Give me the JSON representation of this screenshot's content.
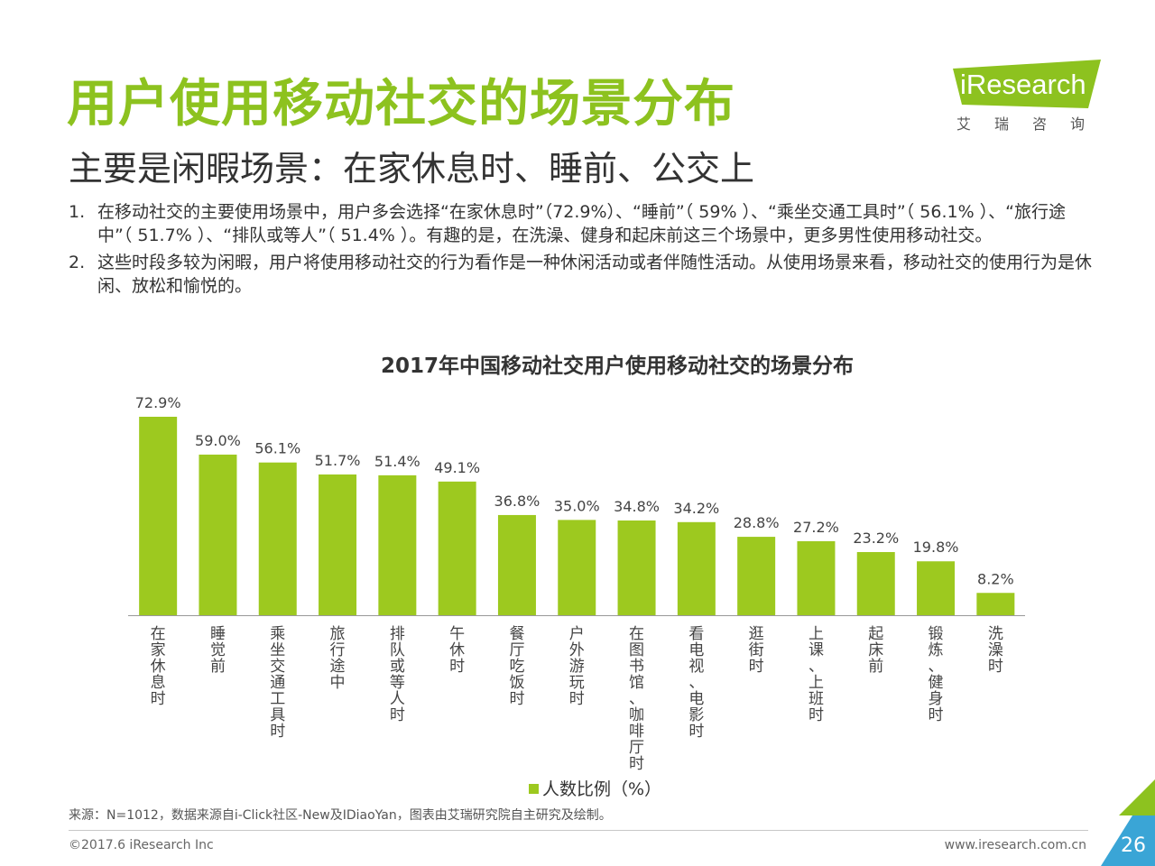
{
  "header": {
    "title": "用户使用移动社交的场景分布",
    "subtitle": "主要是闲暇场景：在家休息时、睡前、公交上"
  },
  "logo": {
    "text": "iResearch",
    "sub": "艾瑞咨询"
  },
  "bullets": [
    {
      "num": "1.",
      "text": "在移动社交的主要使用场景中，用户多会选择“在家休息时”（72.9%）、“睡前”（ 59% ）、“乘坐交通工具时”（ 56.1% ）、“旅行途中”（ 51.7% ）、“排队或等人”（ 51.4% ）。有趣的是，在洗澡、健身和起床前这三个场景中，更多男性使用移动社交。"
    },
    {
      "num": "2.",
      "text": "这些时段多较为闲暇，用户将使用移动社交的行为看作是一种休闲活动或者伴随性活动。从使用场景来看，移动社交的使用行为是休闲、放松和愉悦的。"
    }
  ],
  "chart_data": {
    "type": "bar",
    "title": "2017年中国移动社交用户使用移动社交的场景分布",
    "categories": [
      "在家休息时",
      "睡觉前",
      "乘坐交通工具时",
      "旅行途中",
      "排队或等人时",
      "午休时",
      "餐厅吃饭时",
      "户外游玩时",
      "在图书馆、咖啡厅时",
      "看电视、电影时",
      "逛街时",
      "上课、上班时",
      "起床前",
      "锻炼、健身时",
      "洗澡时"
    ],
    "series": [
      {
        "name": "人数比例（%）",
        "values": [
          72.9,
          59.0,
          56.1,
          51.7,
          51.4,
          49.1,
          36.8,
          35.0,
          34.8,
          34.2,
          28.8,
          27.2,
          23.2,
          19.8,
          8.2
        ]
      }
    ],
    "value_labels": [
      "72.9%",
      "59.0%",
      "56.1%",
      "51.7%",
      "51.4%",
      "49.1%",
      "36.8%",
      "35.0%",
      "34.8%",
      "34.2%",
      "28.8%",
      "27.2%",
      "23.2%",
      "19.8%",
      "8.2%"
    ],
    "ylim": [
      0,
      72.9
    ],
    "grid": false,
    "legend_position": "bottom",
    "bar_color": "#9dc91f"
  },
  "footer": {
    "source": "来源：N=1012，数据来源自i-Click社区-New及IDiaoYan，图表由艾瑞研究院自主研究及绘制。",
    "copyright": "©2017.6 iResearch Inc",
    "website": "www.iresearch.com.cn",
    "page": "26"
  },
  "colors": {
    "accent": "#8dc21f",
    "bar": "#9dc91f",
    "corner": "#3aa5d6"
  }
}
